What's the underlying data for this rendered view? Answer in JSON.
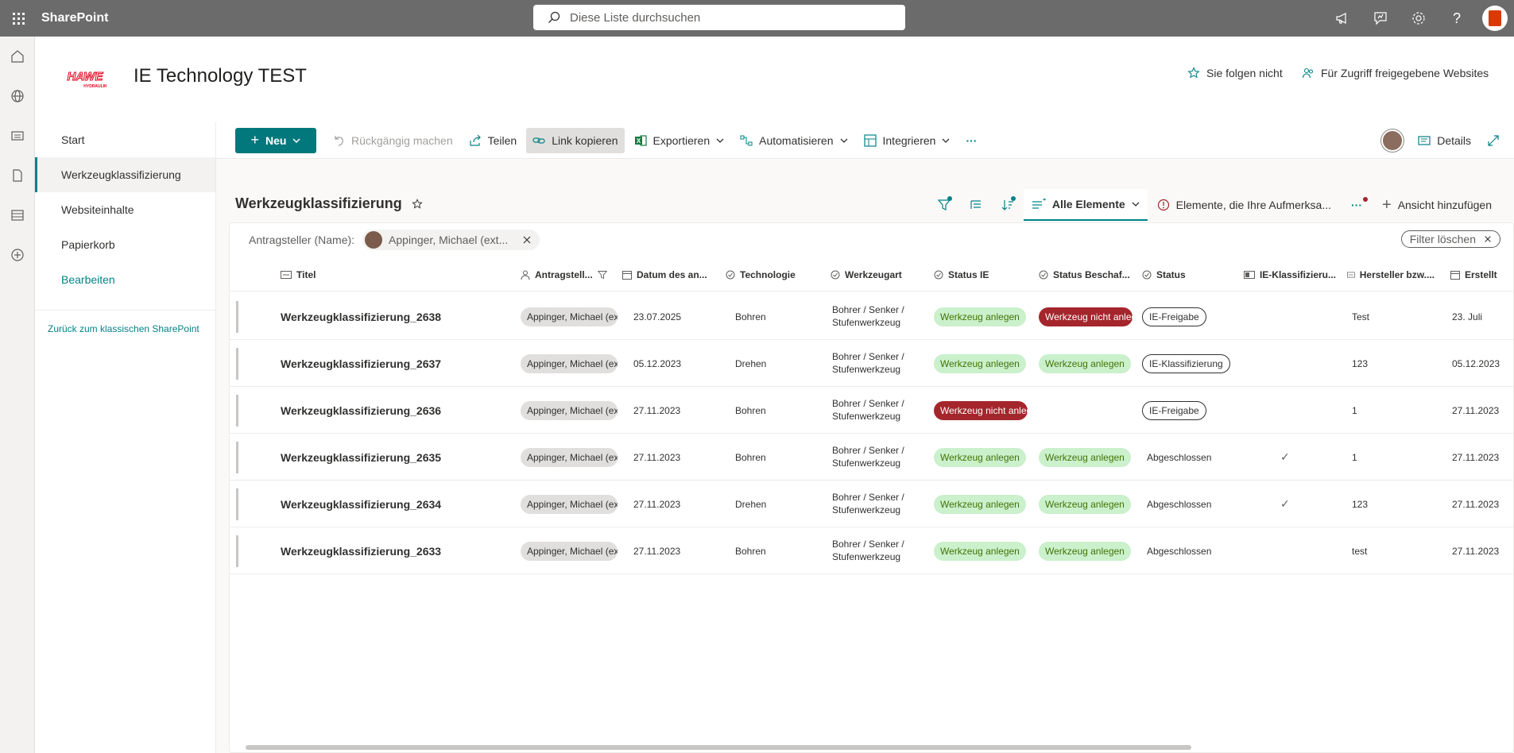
{
  "suite": {
    "app_name": "SharePoint",
    "search_placeholder": "Diese Liste durchsuchen"
  },
  "site": {
    "logo_text": "HAWE",
    "logo_subtext": "HYDRAULIK",
    "title": "IE Technology TEST",
    "follow_label": "Sie folgen nicht",
    "shared_label": "Für Zugriff freigegebene Websites"
  },
  "nav": {
    "items": [
      "Start",
      "Werkzeugklassifizierung",
      "Websiteinhalte",
      "Papierkorb"
    ],
    "edit_label": "Bearbeiten",
    "classic_link": "Zurück zum klassischen SharePoint"
  },
  "commands": {
    "new_label": "Neu",
    "undo_label": "Rückgängig machen",
    "share_label": "Teilen",
    "copy_link_label": "Link kopieren",
    "export_label": "Exportieren",
    "automate_label": "Automatisieren",
    "integrate_label": "Integrieren",
    "more_label": "···",
    "details_label": "Details"
  },
  "list": {
    "title": "Werkzeugklassifizierung",
    "view_name": "Alle Elemente",
    "attention_view": "Elemente, die Ihre Aufmerksa...",
    "more_views": "···",
    "add_view": "Ansicht hinzufügen",
    "filter_label": "Antragsteller (Name):",
    "filter_value": "Appinger, Michael (ext...",
    "clear_filter": "Filter löschen"
  },
  "columns": [
    "Titel",
    "Antragstell...",
    "Datum des an...",
    "Technologie",
    "Werkzeugart",
    "Status IE",
    "Status Beschaf...",
    "Status",
    "IE-Klassifizieru...",
    "Hersteller bzw....",
    "Erstellt"
  ],
  "rows": [
    {
      "title": "Werkzeugklassifizierung_2638",
      "person": "Appinger, Michael (ext.)",
      "date": "23.07.2025",
      "tech": "Bohren",
      "tool_line1": "Bohrer / Senker /",
      "tool_line2": "Stufenwerkzeug",
      "status_ie": "Werkzeug anlegen",
      "status_ie_type": "green",
      "status_procure": "Werkzeug nicht anlegen",
      "status_procure_type": "red",
      "status": "IE-Freigabe",
      "status_type": "outline",
      "ie_check": "",
      "maker": "Test",
      "created": "23. Juli"
    },
    {
      "title": "Werkzeugklassifizierung_2637",
      "person": "Appinger, Michael (ext.)",
      "date": "05.12.2023",
      "tech": "Drehen",
      "tool_line1": "Bohrer / Senker /",
      "tool_line2": "Stufenwerkzeug",
      "status_ie": "Werkzeug anlegen",
      "status_ie_type": "green",
      "status_procure": "Werkzeug anlegen",
      "status_procure_type": "green",
      "status": "IE-Klassifizierung",
      "status_type": "outline",
      "ie_check": "",
      "maker": "123",
      "created": "05.12.2023"
    },
    {
      "title": "Werkzeugklassifizierung_2636",
      "person": "Appinger, Michael (ext.)",
      "date": "27.11.2023",
      "tech": "Bohren",
      "tool_line1": "Bohrer / Senker /",
      "tool_line2": "Stufenwerkzeug",
      "status_ie": "Werkzeug nicht anlegen",
      "status_ie_type": "red",
      "status_procure": "",
      "status_procure_type": "none",
      "status": "IE-Freigabe",
      "status_type": "outline",
      "ie_check": "",
      "maker": "1",
      "created": "27.11.2023"
    },
    {
      "title": "Werkzeugklassifizierung_2635",
      "person": "Appinger, Michael (ext.)",
      "date": "27.11.2023",
      "tech": "Bohren",
      "tool_line1": "Bohrer / Senker /",
      "tool_line2": "Stufenwerkzeug",
      "status_ie": "Werkzeug anlegen",
      "status_ie_type": "green",
      "status_procure": "Werkzeug anlegen",
      "status_procure_type": "green",
      "status": "Abgeschlossen",
      "status_type": "plain",
      "ie_check": "✓",
      "maker": "1",
      "created": "27.11.2023"
    },
    {
      "title": "Werkzeugklassifizierung_2634",
      "person": "Appinger, Michael (ext.)",
      "date": "27.11.2023",
      "tech": "Drehen",
      "tool_line1": "Bohrer / Senker /",
      "tool_line2": "Stufenwerkzeug",
      "status_ie": "Werkzeug anlegen",
      "status_ie_type": "green",
      "status_procure": "Werkzeug anlegen",
      "status_procure_type": "green",
      "status": "Abgeschlossen",
      "status_type": "plain",
      "ie_check": "✓",
      "maker": "123",
      "created": "27.11.2023"
    },
    {
      "title": "Werkzeugklassifizierung_2633",
      "person": "Appinger, Michael (ext.)",
      "date": "27.11.2023",
      "tech": "Bohren",
      "tool_line1": "Bohrer / Senker /",
      "tool_line2": "Stufenwerkzeug",
      "status_ie": "Werkzeug anlegen",
      "status_ie_type": "green",
      "status_procure": "Werkzeug anlegen",
      "status_procure_type": "green",
      "status": "Abgeschlossen",
      "status_type": "plain",
      "ie_check": "",
      "maker": "test",
      "created": "27.11.2023"
    }
  ],
  "colors": {
    "accent": "#038387",
    "suite_bar": "#6b6b6b",
    "badge_green_bg": "#caf0cc",
    "badge_red_bg": "#a4262c"
  },
  "icons": [
    "waffle-icon",
    "search-icon",
    "megaphone-icon",
    "feedback-icon",
    "gear-icon",
    "help-icon",
    "office-icon",
    "home-icon",
    "globe-icon",
    "news-icon",
    "file-icon",
    "list-icon",
    "add-circle-icon",
    "star-icon",
    "people-icon",
    "plus-icon",
    "chevron-down-icon",
    "undo-icon",
    "share-icon",
    "link-icon",
    "excel-icon",
    "flow-icon",
    "integrate-icon",
    "info-icon",
    "expand-icon",
    "filter-icon",
    "group-icon",
    "sort-icon",
    "view-icon",
    "alert-icon",
    "close-icon",
    "check-icon"
  ]
}
